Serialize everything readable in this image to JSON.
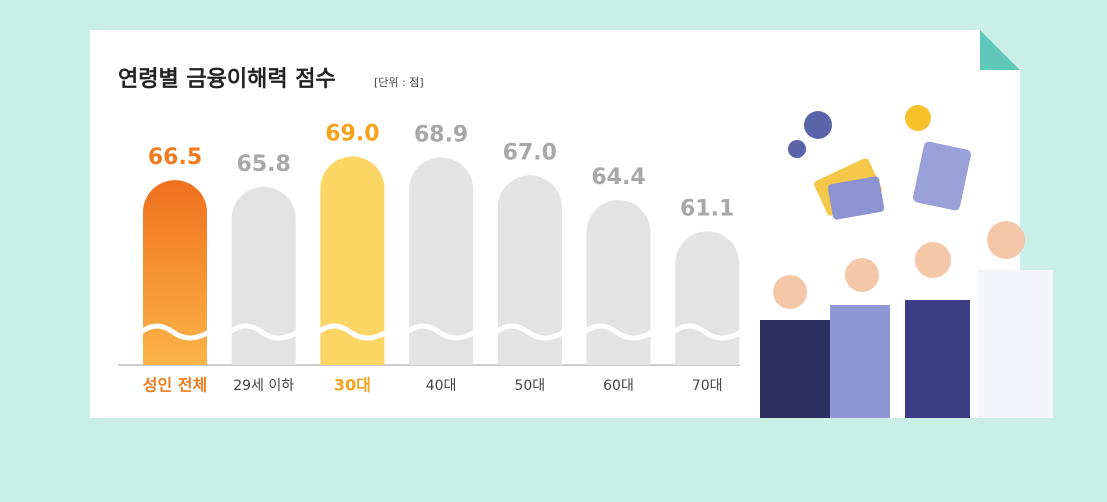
{
  "chart_data": {
    "type": "bar",
    "title": "연령별 금융이해력 점수",
    "subtitle": "[단위 : 점]",
    "categories": [
      "성인 전체",
      "29세 이하",
      "30대",
      "40대",
      "50대",
      "60대",
      "70대"
    ],
    "values": [
      66.5,
      65.8,
      69.0,
      68.9,
      67.0,
      64.4,
      61.1
    ],
    "value_labels": [
      "66.5",
      "65.8",
      "69.0",
      "68.9",
      "67.0",
      "64.4",
      "61.1"
    ],
    "colors": [
      "#f37c20",
      "#e3e3e3",
      "#fdd565",
      "#e3e3e3",
      "#e3e3e3",
      "#e3e3e3",
      "#e3e3e3"
    ],
    "label_colors": [
      "#f07b1f",
      "#a8a8a8",
      "#f5a21d",
      "#a8a8a8",
      "#a8a8a8",
      "#a8a8a8",
      "#a8a8a8"
    ],
    "ylim": [
      47,
      70
    ]
  }
}
